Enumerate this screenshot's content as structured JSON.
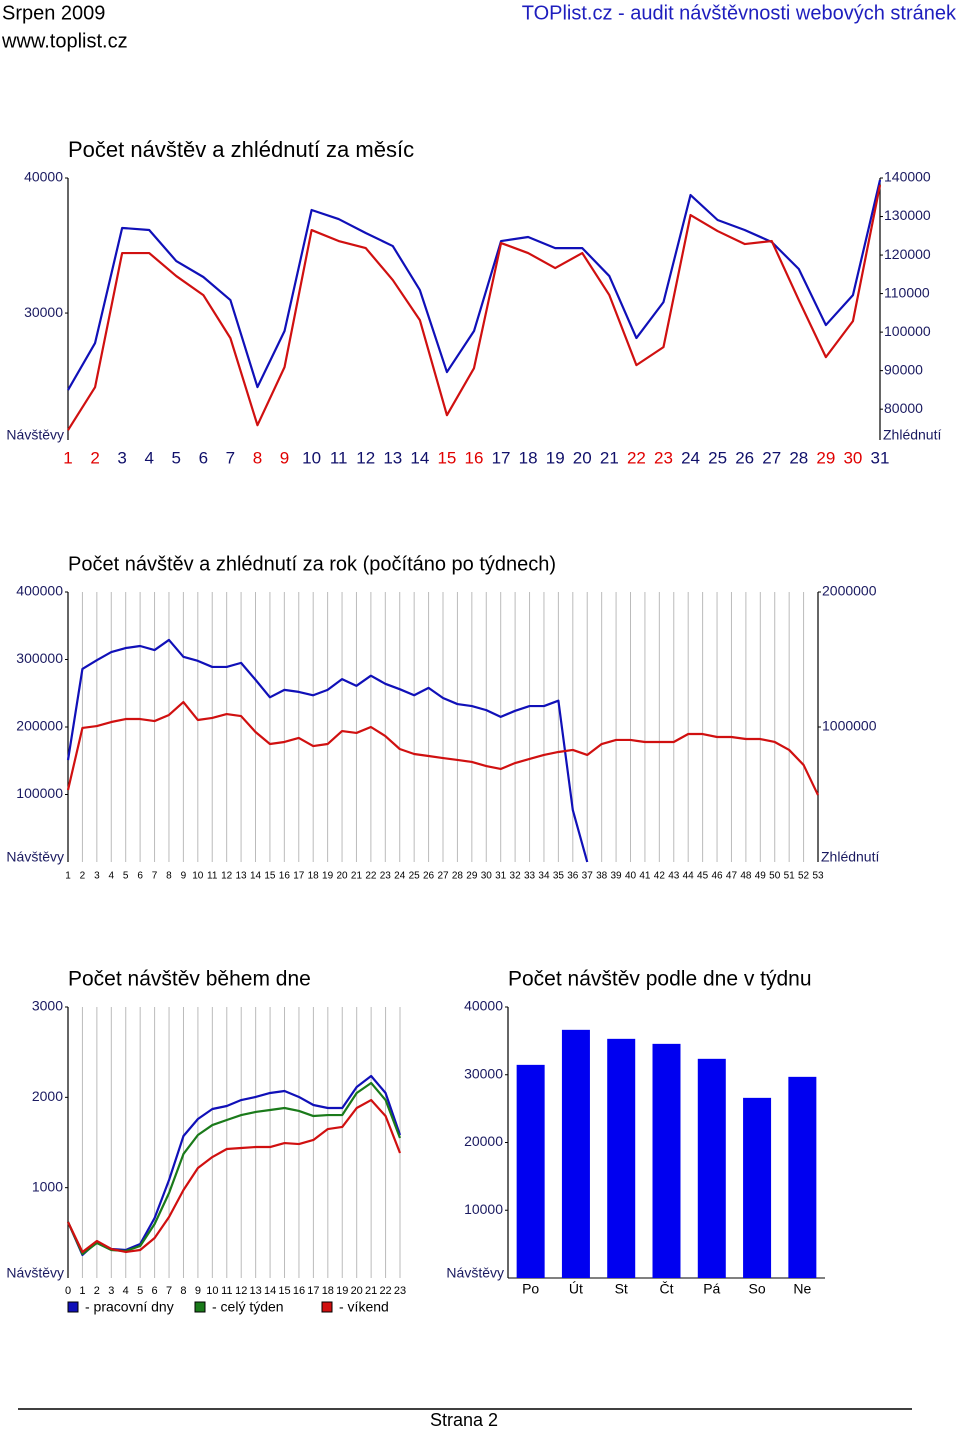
{
  "header": {
    "left_title": "Srpen 2009",
    "url": "www.toplist.cz",
    "right_title": "TOPlist.cz - audit návštěvnosti webových stránek"
  },
  "footer": {
    "page": "Strana 2"
  },
  "chart_data": [
    {
      "type": "line",
      "title": "Počet návštěv a zhlédnutí za měsíc",
      "y_label": "Návštěvy",
      "y2_label": "Zhlédnutí",
      "categories": [
        "1",
        "2",
        "3",
        "4",
        "5",
        "6",
        "7",
        "8",
        "9",
        "10",
        "11",
        "12",
        "13",
        "14",
        "15",
        "16",
        "17",
        "18",
        "19",
        "20",
        "21",
        "22",
        "23",
        "24",
        "25",
        "26",
        "27",
        "28",
        "29",
        "30",
        "31"
      ],
      "category_colors": [
        "#e00000",
        "#e00000",
        "#10106a",
        "#10106a",
        "#10106a",
        "#10106a",
        "#10106a",
        "#e00000",
        "#e00000",
        "#10106a",
        "#10106a",
        "#10106a",
        "#10106a",
        "#10106a",
        "#e00000",
        "#e00000",
        "#10106a",
        "#10106a",
        "#10106a",
        "#10106a",
        "#10106a",
        "#e00000",
        "#e00000",
        "#10106a",
        "#10106a",
        "#10106a",
        "#10106a",
        "#10106a",
        "#e00000",
        "#e00000",
        "#10106a"
      ],
      "series": [
        {
          "name": "Návštěvy",
          "color": "#1010b8",
          "values": [
            24300,
            27780,
            36300,
            36150,
            33850,
            32670,
            30960,
            24520,
            28670,
            37630,
            36960,
            35930,
            34960,
            31700,
            25630,
            28670,
            35330,
            35630,
            34810,
            34810,
            32740,
            28150,
            30810,
            38740,
            36890,
            36150,
            35260,
            33260,
            29110,
            31330,
            39850
          ]
        },
        {
          "name": "Zhlédnutí",
          "color": "#d01010",
          "axis": "y2",
          "values": [
            74550,
            85710,
            120520,
            120520,
            114550,
            109610,
            98440,
            75840,
            90910,
            126490,
            123640,
            121820,
            113510,
            103120,
            78440,
            90650,
            123120,
            120520,
            116620,
            120520,
            109610,
            91430,
            96100,
            130390,
            126230,
            122860,
            123640,
            108310,
            93510,
            102860,
            138180
          ]
        }
      ],
      "ylim": [
        20600,
        40000
      ],
      "yticks": [
        30000,
        40000
      ],
      "y2lim": [
        72000,
        140000
      ],
      "y2ticks": [
        80000,
        90000,
        100000,
        110000,
        120000,
        130000,
        140000
      ],
      "grid_x": false
    },
    {
      "type": "line",
      "title": "Počet návštěv a zhlédnutí za rok (počítáno po týdnech)",
      "y_label": "Návštěvy",
      "y2_label": "Zhlédnutí",
      "categories": [
        "1",
        "2",
        "3",
        "4",
        "5",
        "6",
        "7",
        "8",
        "9",
        "10",
        "11",
        "12",
        "13",
        "14",
        "15",
        "16",
        "17",
        "18",
        "19",
        "20",
        "21",
        "22",
        "23",
        "24",
        "25",
        "26",
        "27",
        "28",
        "29",
        "30",
        "31",
        "32",
        "33",
        "34",
        "35",
        "36",
        "37",
        "38",
        "39",
        "40",
        "41",
        "42",
        "43",
        "44",
        "45",
        "46",
        "47",
        "48",
        "49",
        "50",
        "51",
        "52",
        "53"
      ],
      "series": [
        {
          "name": "Návštěvy",
          "color": "#1010b8",
          "values": [
            151000,
            286000,
            299000,
            311000,
            317000,
            320000,
            314000,
            329000,
            304000,
            298000,
            289000,
            289000,
            295000,
            270000,
            244000,
            255000,
            252000,
            247000,
            255000,
            271000,
            261000,
            276000,
            264000,
            256000,
            247000,
            258000,
            243000,
            234000,
            231000,
            225000,
            215000,
            224000,
            231000,
            231000,
            239000,
            77000,
            0,
            null,
            null,
            null,
            null,
            null,
            null,
            null,
            null,
            null,
            null,
            null,
            null,
            null,
            null,
            null,
            null
          ]
        },
        {
          "name": "Zhlédnutí",
          "color": "#d01010",
          "axis": "y2",
          "values": [
            533000,
            993000,
            1007000,
            1037000,
            1059000,
            1059000,
            1044000,
            1089000,
            1185000,
            1052000,
            1067000,
            1096000,
            1081000,
            963000,
            874000,
            889000,
            919000,
            859000,
            874000,
            970000,
            956000,
            1000000,
            933000,
            837000,
            800000,
            785000,
            770000,
            756000,
            741000,
            711000,
            689000,
            733000,
            763000,
            793000,
            815000,
            830000,
            793000,
            874000,
            904000,
            904000,
            889000,
            889000,
            889000,
            948000,
            948000,
            926000,
            926000,
            911000,
            911000,
            889000,
            830000,
            719000,
            496000
          ]
        }
      ],
      "ylim": [
        0,
        400000
      ],
      "yticks": [
        100000,
        200000,
        300000,
        400000
      ],
      "y2lim": [
        0,
        2000000
      ],
      "y2ticks": [
        1000000,
        2000000
      ],
      "grid_x": true
    },
    {
      "type": "line",
      "title": "Počet návštěv během dne",
      "y_label": "Návštěvy",
      "categories": [
        "0",
        "1",
        "2",
        "3",
        "4",
        "5",
        "6",
        "7",
        "8",
        "9",
        "10",
        "11",
        "12",
        "13",
        "14",
        "15",
        "16",
        "17",
        "18",
        "19",
        "20",
        "21",
        "22",
        "23"
      ],
      "series": [
        {
          "name": "- pracovní dny",
          "color": "#1010b8",
          "values": [
            620,
            255,
            399,
            321,
            310,
            376,
            664,
            1085,
            1572,
            1760,
            1871,
            1904,
            1970,
            2004,
            2048,
            2070,
            2004,
            1915,
            1882,
            1882,
            2114,
            2236,
            2048,
            1583
          ]
        },
        {
          "name": "- celý týden",
          "color": "#1a7a1a",
          "values": [
            620,
            266,
            387,
            310,
            299,
            354,
            598,
            941,
            1373,
            1583,
            1693,
            1749,
            1804,
            1838,
            1860,
            1882,
            1849,
            1793,
            1804,
            1804,
            2048,
            2159,
            1970,
            1550
          ]
        },
        {
          "name": "- víkend",
          "color": "#d01010",
          "values": [
            620,
            288,
            410,
            321,
            288,
            310,
            443,
            675,
            974,
            1218,
            1339,
            1428,
            1439,
            1450,
            1450,
            1494,
            1483,
            1528,
            1649,
            1672,
            1882,
            1970,
            1793,
            1384
          ]
        }
      ],
      "ylim": [
        0,
        3000
      ],
      "yticks": [
        1000,
        2000,
        3000
      ],
      "grid_x": true,
      "legend": "bottom"
    },
    {
      "type": "bar",
      "title": "Počet návštěv podle dne v týdnu",
      "y_label": "Návštěvy",
      "categories": [
        "Po",
        "Út",
        "St",
        "Čt",
        "Pá",
        "So",
        "Ne"
      ],
      "values": [
        31460,
        36630,
        35300,
        34560,
        32350,
        26590,
        29690
      ],
      "color": "#0000f0",
      "ylim": [
        0,
        40000
      ],
      "yticks": [
        10000,
        20000,
        30000,
        40000
      ],
      "grid_x": false
    }
  ]
}
